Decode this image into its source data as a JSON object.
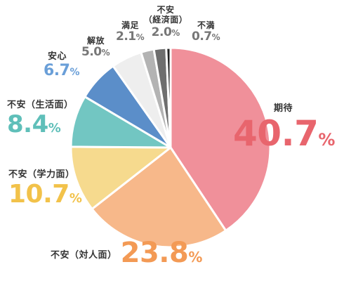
{
  "chart_data": {
    "type": "pie",
    "unit": "%",
    "slices": [
      {
        "label": "期待",
        "value": 40.7,
        "color": "#f0909a",
        "label_color": "#e8656d"
      },
      {
        "label": "不安（対人面）",
        "value": 23.8,
        "color": "#f7b88a",
        "label_color": "#f39a55"
      },
      {
        "label": "不安（学力面）",
        "value": 10.7,
        "color": "#f6da8e",
        "label_color": "#f2c24a"
      },
      {
        "label": "不安（生活面）",
        "value": 8.4,
        "color": "#72c6c2",
        "label_color": "#5fbfb9"
      },
      {
        "label": "安心",
        "value": 6.7,
        "color": "#5b8ec9",
        "label_color": "#6a9fd8"
      },
      {
        "label": "解放",
        "value": 5.0,
        "color": "#eeeeee",
        "label_color": "#777777"
      },
      {
        "label": "満足",
        "value": 2.1,
        "color": "#b3b3b3",
        "label_color": "#777777"
      },
      {
        "label": "不安\n（経済面）",
        "value": 2.0,
        "color": "#6e6e6e",
        "label_color": "#777777"
      },
      {
        "label": "不満",
        "value": 0.7,
        "color": "#222222",
        "label_color": "#777777"
      }
    ],
    "value_labels": [
      "40.7",
      "23.8",
      "10.7",
      "8.4",
      "6.7",
      "5.0",
      "2.1",
      "2.0",
      "0.7"
    ]
  }
}
